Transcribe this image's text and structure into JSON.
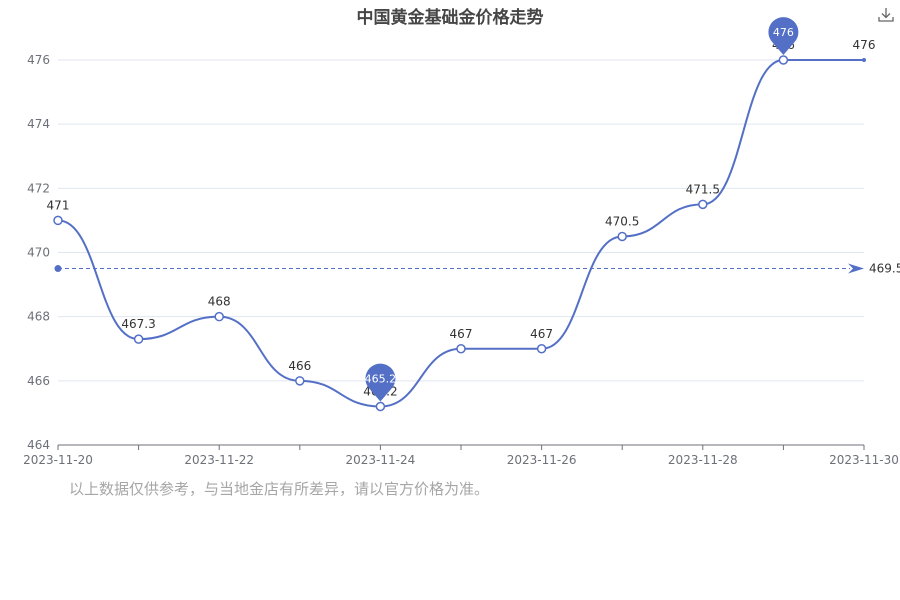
{
  "chart_data": {
    "type": "line",
    "title": "中国黄金基础金价格走势",
    "x": [
      "2023-11-20",
      "2023-11-21",
      "2023-11-22",
      "2023-11-23",
      "2023-11-24",
      "2023-11-25",
      "2023-11-26",
      "2023-11-27",
      "2023-11-28",
      "2023-11-29",
      "2023-11-30"
    ],
    "values": [
      471,
      467.3,
      468,
      466,
      465.2,
      467,
      467,
      470.5,
      471.5,
      476,
      476
    ],
    "x_tick_labels": [
      "2023-11-20",
      "2023-11-22",
      "2023-11-24",
      "2023-11-26",
      "2023-11-28",
      "2023-11-30"
    ],
    "y_ticks": [
      464,
      466,
      468,
      470,
      472,
      474,
      476
    ],
    "ylim": [
      464,
      476
    ],
    "max_marker": {
      "date": "2023-11-29",
      "value": 476,
      "label": "476"
    },
    "min_marker": {
      "date": "2023-11-24",
      "value": 465.2,
      "label": "465.2"
    },
    "average_line": {
      "value": 469.5,
      "label": "469.5"
    },
    "grid": true,
    "line_color": "#5470c6"
  },
  "footnote": "以上数据仅供参考，与当地金店有所差异，请以官方价格为准。",
  "icons": {
    "download": "download-icon"
  }
}
